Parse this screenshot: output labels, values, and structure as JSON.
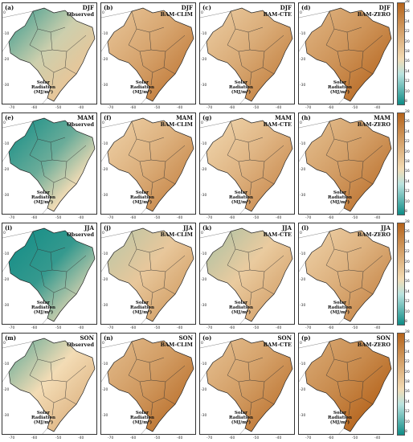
{
  "columns": [
    {
      "source": "Observed"
    },
    {
      "source": "BAM-CLIM"
    },
    {
      "source": "BAM-CTE"
    },
    {
      "source": "BAM-ZERO"
    }
  ],
  "rows": [
    {
      "season": "DJF",
      "labels": [
        "(a)",
        "(b)",
        "(c)",
        "(d)"
      ],
      "tones": [
        0.25,
        0.62,
        0.58,
        0.72
      ]
    },
    {
      "season": "MAM",
      "labels": [
        "(e)",
        "(f)",
        "(g)",
        "(h)"
      ],
      "tones": [
        0.12,
        0.55,
        0.52,
        0.66
      ]
    },
    {
      "season": "JJA",
      "labels": [
        "(i)",
        "(j)",
        "(k)",
        "(l)"
      ],
      "tones": [
        0.05,
        0.42,
        0.4,
        0.55
      ]
    },
    {
      "season": "SON",
      "labels": [
        "(m)",
        "(n)",
        "(o)",
        "(p)"
      ],
      "tones": [
        0.3,
        0.68,
        0.65,
        0.78
      ]
    }
  ],
  "variable_label_line1": "Solar",
  "variable_label_line2": "Radiation (MJ/m²)",
  "x_ticks": [
    "-70",
    "-60",
    "-50",
    "-40"
  ],
  "y_ticks": [
    "0",
    "-10",
    "-20",
    "-30"
  ],
  "colorbar_ticks": [
    "28",
    "26",
    "24",
    "22",
    "20",
    "18",
    "16",
    "14",
    "12",
    "10",
    "8"
  ],
  "colors": {
    "dry": "#b5641c",
    "mid": "#f3dcb5",
    "wet": "#0f8c86"
  }
}
